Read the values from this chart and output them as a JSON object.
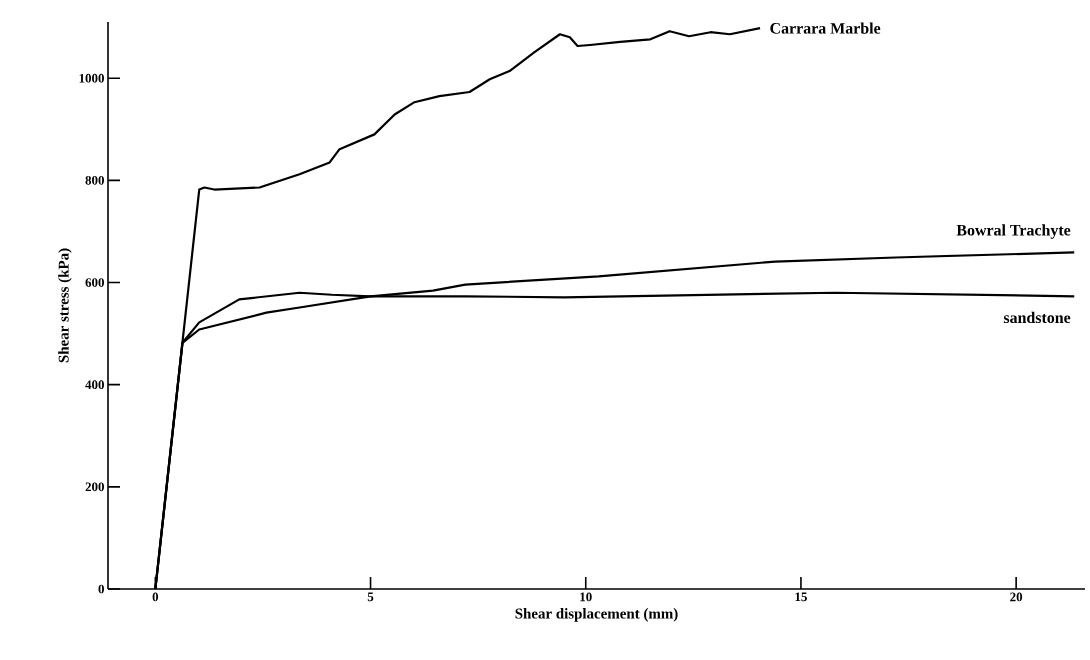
{
  "chart_data": {
    "type": "line",
    "xlabel": "Shear displacement (mm)",
    "ylabel": "Shear stress (kPa)",
    "xlim": [
      -1.1,
      21.6
    ],
    "ylim": [
      0,
      1110
    ],
    "xticks": [
      0,
      5,
      10,
      15,
      20
    ],
    "yticks": [
      0,
      200,
      400,
      600,
      800,
      1000
    ],
    "grid": false,
    "legend": false,
    "marker": "none",
    "line_style": "solid",
    "series": [
      {
        "name": "Carrara Marble",
        "color": "#000000",
        "x": [
          0,
          1.02,
          1.14,
          1.37,
          2.42,
          3.35,
          4.05,
          4.28,
          5.09,
          5.56,
          6.02,
          6.6,
          7.3,
          7.77,
          8.23,
          8.81,
          9.4,
          9.63,
          9.81,
          10.1,
          10.8,
          11.5,
          11.95,
          12.4,
          12.9,
          13.35,
          14.05
        ],
        "values": [
          0,
          782,
          786,
          782,
          786,
          812,
          835,
          861,
          890,
          929,
          953,
          965,
          973,
          998,
          1014,
          1051,
          1086,
          1080,
          1063,
          1065,
          1071,
          1076,
          1092,
          1082,
          1090,
          1086,
          1098
        ]
      },
      {
        "name": "Bowral Trachyte",
        "color": "#000000",
        "x": [
          0,
          0.63,
          1.02,
          2.58,
          3.35,
          5,
          6.45,
          7.2,
          10.3,
          14.4,
          17.2,
          21.35
        ],
        "values": [
          0,
          482,
          508,
          541,
          551,
          573,
          584,
          596,
          612,
          641,
          649,
          659
        ]
      },
      {
        "name": "sandstone",
        "color": "#000000",
        "x": [
          0,
          0.63,
          1.02,
          1.95,
          3.35,
          4.1,
          5,
          7.2,
          9.5,
          15.8,
          21.35
        ],
        "values": [
          0,
          482,
          522,
          567,
          580,
          576,
          573,
          573,
          571,
          580,
          573
        ]
      }
    ]
  }
}
